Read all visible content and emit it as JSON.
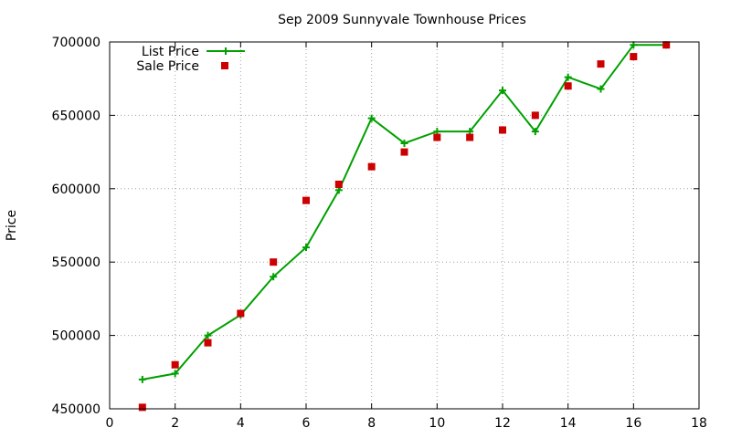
{
  "chart_data": {
    "type": "line",
    "title": "Sep 2009 Sunnyvale Townhouse Prices",
    "xlabel": "",
    "ylabel": "Price",
    "xlim": [
      0,
      18
    ],
    "ylim": [
      450000,
      700000
    ],
    "xticks": [
      0,
      2,
      4,
      6,
      8,
      10,
      12,
      14,
      16,
      18
    ],
    "yticks": [
      450000,
      500000,
      550000,
      600000,
      650000,
      700000
    ],
    "grid": true,
    "legend_position": "top-left",
    "series": [
      {
        "name": "List Price",
        "style": "line+cross",
        "color": "#00a000",
        "x": [
          1,
          2,
          3,
          4,
          5,
          6,
          7,
          8,
          9,
          10,
          11,
          12,
          13,
          14,
          15,
          16,
          17
        ],
        "y": [
          470000,
          474000,
          500000,
          514000,
          540000,
          560000,
          599000,
          648000,
          631000,
          639000,
          639000,
          667000,
          639000,
          676000,
          668000,
          698000,
          698000
        ]
      },
      {
        "name": "Sale Price",
        "style": "square",
        "color": "#cc0000",
        "x": [
          1,
          2,
          3,
          4,
          5,
          6,
          7,
          8,
          9,
          10,
          11,
          12,
          13,
          14,
          15,
          16,
          17
        ],
        "y": [
          451000,
          480000,
          495000,
          515000,
          550000,
          592000,
          603000,
          615000,
          625000,
          635000,
          635000,
          640000,
          650000,
          670000,
          685000,
          690000,
          698000
        ]
      }
    ]
  }
}
